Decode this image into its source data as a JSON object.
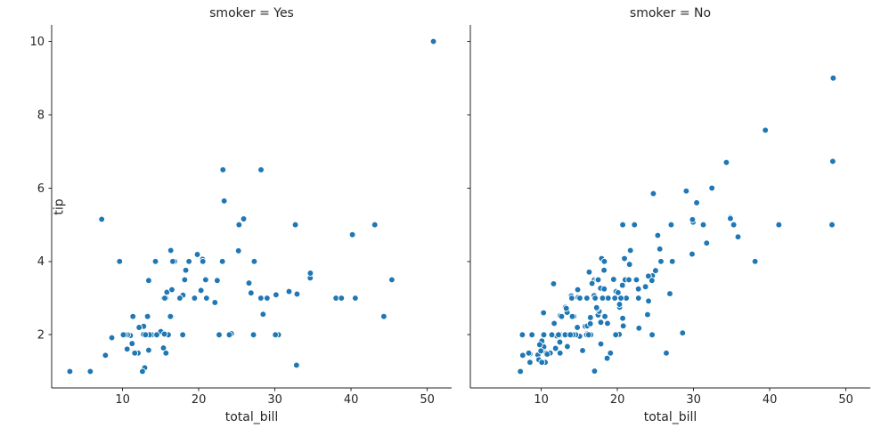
{
  "chart_data": {
    "type": "scatter",
    "xlabel": "total_bill",
    "ylabel": "tip",
    "xlim": [
      0.68,
      53.2
    ],
    "ylim": [
      0.55,
      10.45
    ],
    "xticks": [
      10,
      20,
      30,
      40,
      50
    ],
    "yticks": [
      2,
      4,
      6,
      8,
      10
    ],
    "grid": false,
    "legend": "none",
    "point_color": "#1f77b4",
    "point_edge_color": "#ffffff",
    "axis_color": "#262626",
    "facets": [
      {
        "title": "smoker = Yes",
        "show_y_tick_labels": true,
        "points": [
          [
            38.01,
            3.0
          ],
          [
            11.24,
            1.76
          ],
          [
            20.29,
            3.21
          ],
          [
            13.81,
            2.0
          ],
          [
            11.02,
            1.98
          ],
          [
            18.29,
            3.76
          ],
          [
            3.07,
            1.0
          ],
          [
            15.01,
            2.09
          ],
          [
            26.86,
            3.14
          ],
          [
            25.28,
            5.0
          ],
          [
            17.92,
            3.08
          ],
          [
            19.44,
            3.0
          ],
          [
            32.68,
            5.0
          ],
          [
            28.97,
            3.0
          ],
          [
            5.75,
            1.0
          ],
          [
            16.32,
            4.3
          ],
          [
            40.17,
            4.73
          ],
          [
            27.28,
            4.0
          ],
          [
            12.03,
            1.5
          ],
          [
            21.01,
            3.0
          ],
          [
            11.35,
            2.5
          ],
          [
            15.38,
            3.0
          ],
          [
            44.3,
            2.5
          ],
          [
            22.42,
            3.48
          ],
          [
            15.36,
            1.64
          ],
          [
            20.49,
            4.06
          ],
          [
            25.21,
            4.29
          ],
          [
            14.31,
            4.0
          ],
          [
            16.0,
            2.0
          ],
          [
            17.51,
            3.0
          ],
          [
            10.59,
            1.61
          ],
          [
            10.63,
            2.0
          ],
          [
            50.81,
            10.0
          ],
          [
            15.81,
            3.16
          ],
          [
            7.25,
            5.15
          ],
          [
            31.85,
            3.18
          ],
          [
            16.82,
            4.0
          ],
          [
            32.9,
            3.11
          ],
          [
            17.89,
            2.0
          ],
          [
            14.48,
            2.0
          ],
          [
            9.6,
            4.0
          ],
          [
            34.63,
            3.55
          ],
          [
            34.65,
            3.68
          ],
          [
            23.33,
            5.65
          ],
          [
            45.35,
            3.5
          ],
          [
            23.17,
            6.5
          ],
          [
            40.55,
            3.0
          ],
          [
            20.9,
            3.5
          ],
          [
            30.46,
            2.0
          ],
          [
            18.15,
            3.5
          ],
          [
            23.1,
            4.0
          ],
          [
            15.69,
            1.5
          ],
          [
            19.81,
            4.19
          ],
          [
            28.44,
            2.56
          ],
          [
            15.48,
            2.02
          ],
          [
            16.58,
            4.0
          ],
          [
            10.34,
            2.0
          ],
          [
            43.11,
            5.0
          ],
          [
            13.0,
            2.0
          ],
          [
            13.51,
            2.0
          ],
          [
            18.71,
            4.0
          ],
          [
            12.74,
            2.01
          ],
          [
            13.0,
            2.0
          ],
          [
            16.4,
            2.5
          ],
          [
            20.53,
            4.0
          ],
          [
            16.47,
            3.23
          ],
          [
            26.59,
            3.41
          ],
          [
            38.73,
            3.0
          ],
          [
            24.27,
            2.03
          ],
          [
            12.76,
            2.23
          ],
          [
            30.06,
            2.0
          ],
          [
            25.89,
            5.16
          ],
          [
            13.27,
            2.5
          ],
          [
            28.17,
            6.5
          ],
          [
            12.9,
            1.1
          ],
          [
            28.15,
            3.0
          ],
          [
            11.59,
            1.5
          ],
          [
            7.74,
            1.44
          ],
          [
            30.14,
            3.09
          ],
          [
            12.16,
            2.2
          ],
          [
            13.42,
            3.48
          ],
          [
            8.58,
            1.92
          ],
          [
            13.42,
            1.58
          ],
          [
            16.27,
            2.5
          ],
          [
            10.09,
            2.0
          ],
          [
            22.12,
            2.88
          ],
          [
            24.01,
            2.0
          ],
          [
            15.69,
            3.0
          ],
          [
            15.53,
            3.0
          ],
          [
            12.6,
            1.0
          ],
          [
            32.83,
            1.17
          ],
          [
            27.18,
            2.0
          ],
          [
            22.67,
            2.0
          ]
        ]
      },
      {
        "title": "smoker = No",
        "show_y_tick_labels": false,
        "points": [
          [
            16.99,
            1.01
          ],
          [
            10.34,
            1.66
          ],
          [
            21.01,
            3.5
          ],
          [
            23.68,
            3.31
          ],
          [
            24.59,
            3.61
          ],
          [
            25.29,
            4.71
          ],
          [
            8.77,
            2.0
          ],
          [
            26.88,
            3.12
          ],
          [
            15.04,
            1.96
          ],
          [
            14.78,
            3.23
          ],
          [
            10.27,
            1.71
          ],
          [
            35.26,
            5.0
          ],
          [
            15.42,
            1.57
          ],
          [
            18.43,
            3.0
          ],
          [
            14.83,
            3.02
          ],
          [
            21.58,
            3.92
          ],
          [
            10.33,
            1.67
          ],
          [
            16.29,
            3.71
          ],
          [
            16.97,
            3.5
          ],
          [
            20.65,
            3.35
          ],
          [
            17.92,
            4.08
          ],
          [
            20.29,
            2.75
          ],
          [
            15.77,
            2.23
          ],
          [
            39.42,
            7.58
          ],
          [
            19.82,
            3.18
          ],
          [
            17.81,
            2.34
          ],
          [
            13.37,
            2.0
          ],
          [
            12.69,
            2.0
          ],
          [
            21.7,
            4.3
          ],
          [
            19.65,
            3.0
          ],
          [
            9.55,
            1.45
          ],
          [
            18.35,
            2.5
          ],
          [
            15.06,
            3.0
          ],
          [
            20.69,
            2.45
          ],
          [
            17.78,
            3.27
          ],
          [
            24.06,
            3.6
          ],
          [
            16.31,
            2.0
          ],
          [
            16.93,
            3.07
          ],
          [
            18.69,
            2.31
          ],
          [
            31.27,
            5.0
          ],
          [
            16.04,
            2.24
          ],
          [
            17.46,
            2.54
          ],
          [
            13.94,
            3.06
          ],
          [
            9.68,
            1.32
          ],
          [
            30.4,
            5.6
          ],
          [
            18.29,
            3.0
          ],
          [
            22.23,
            5.0
          ],
          [
            32.4,
            6.0
          ],
          [
            28.55,
            2.05
          ],
          [
            18.04,
            3.0
          ],
          [
            12.54,
            2.5
          ],
          [
            10.29,
            2.6
          ],
          [
            34.81,
            5.2
          ],
          [
            9.94,
            1.56
          ],
          [
            25.56,
            4.34
          ],
          [
            19.49,
            3.51
          ],
          [
            26.41,
            1.5
          ],
          [
            48.27,
            6.73
          ],
          [
            17.59,
            2.64
          ],
          [
            20.08,
            3.15
          ],
          [
            16.45,
            2.47
          ],
          [
            20.23,
            2.01
          ],
          [
            12.02,
            1.97
          ],
          [
            17.07,
            3.0
          ],
          [
            14.73,
            2.2
          ],
          [
            10.51,
            1.25
          ],
          [
            27.2,
            4.0
          ],
          [
            22.76,
            3.0
          ],
          [
            17.29,
            2.71
          ],
          [
            16.66,
            3.4
          ],
          [
            10.07,
            1.83
          ],
          [
            15.98,
            2.03
          ],
          [
            34.83,
            5.17
          ],
          [
            13.03,
            2.0
          ],
          [
            18.28,
            4.0
          ],
          [
            24.71,
            5.85
          ],
          [
            21.16,
            3.0
          ],
          [
            22.49,
            3.5
          ],
          [
            22.75,
            3.25
          ],
          [
            12.46,
            1.5
          ],
          [
            20.92,
            4.08
          ],
          [
            18.24,
            3.76
          ],
          [
            14.0,
            3.0
          ],
          [
            7.25,
            1.0
          ],
          [
            38.07,
            4.0
          ],
          [
            23.95,
            2.55
          ],
          [
            25.71,
            4.0
          ],
          [
            17.31,
            3.5
          ],
          [
            29.93,
            5.07
          ],
          [
            10.65,
            1.5
          ],
          [
            12.43,
            1.8
          ],
          [
            24.08,
            2.92
          ],
          [
            11.69,
            2.31
          ],
          [
            13.42,
            1.68
          ],
          [
            14.26,
            2.5
          ],
          [
            15.95,
            2.0
          ],
          [
            12.48,
            2.52
          ],
          [
            29.8,
            4.2
          ],
          [
            8.52,
            1.48
          ],
          [
            14.52,
            2.0
          ],
          [
            11.38,
            2.0
          ],
          [
            22.82,
            2.18
          ],
          [
            19.08,
            1.5
          ],
          [
            20.27,
            2.83
          ],
          [
            11.17,
            1.5
          ],
          [
            12.26,
            2.0
          ],
          [
            18.26,
            3.25
          ],
          [
            8.51,
            1.25
          ],
          [
            10.33,
            2.0
          ],
          [
            14.15,
            2.0
          ],
          [
            13.16,
            2.75
          ],
          [
            17.47,
            3.5
          ],
          [
            34.3,
            6.7
          ],
          [
            41.19,
            5.0
          ],
          [
            27.05,
            5.0
          ],
          [
            16.43,
            2.3
          ],
          [
            8.35,
            1.5
          ],
          [
            18.64,
            1.36
          ],
          [
            11.87,
            1.63
          ],
          [
            9.78,
            1.73
          ],
          [
            7.51,
            2.0
          ],
          [
            14.07,
            2.5
          ],
          [
            13.13,
            2.0
          ],
          [
            17.26,
            2.74
          ],
          [
            24.55,
            2.0
          ],
          [
            19.77,
            2.0
          ],
          [
            29.85,
            5.14
          ],
          [
            48.17,
            5.0
          ],
          [
            25.0,
            3.75
          ],
          [
            13.39,
            2.61
          ],
          [
            16.49,
            2.0
          ],
          [
            21.5,
            3.5
          ],
          [
            12.66,
            2.5
          ],
          [
            16.21,
            2.0
          ],
          [
            13.81,
            2.0
          ],
          [
            24.52,
            3.48
          ],
          [
            20.76,
            2.24
          ],
          [
            31.71,
            4.5
          ],
          [
            20.69,
            5.0
          ],
          [
            7.56,
            1.44
          ],
          [
            48.33,
            9.0
          ],
          [
            15.98,
            3.0
          ],
          [
            20.45,
            3.0
          ],
          [
            13.28,
            2.72
          ],
          [
            11.61,
            3.39
          ],
          [
            10.77,
            1.47
          ],
          [
            10.07,
            1.25
          ],
          [
            35.83,
            4.67
          ],
          [
            29.03,
            5.92
          ],
          [
            17.82,
            1.75
          ],
          [
            18.78,
            3.0
          ]
        ]
      }
    ]
  }
}
